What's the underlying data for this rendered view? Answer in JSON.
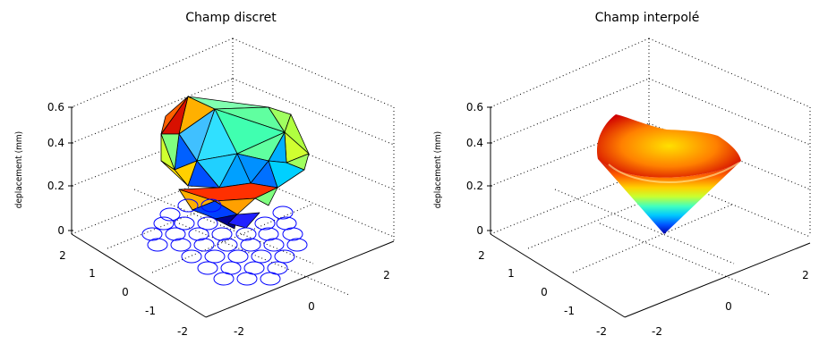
{
  "chart_data": [
    {
      "type": "surface",
      "title": "Champ discret",
      "ylabel": "deplacement (mm)",
      "z_ticks": [
        "0",
        "0.2",
        "0.4",
        "0.6"
      ],
      "y_ticks": [
        "2",
        "1",
        "0",
        "-1",
        "-2"
      ],
      "x_ticks": [
        "-2",
        "0",
        "2"
      ],
      "zlim": [
        0,
        0.6
      ],
      "grid": true,
      "style": "faceted triangulated patches (jet colormap) with circle markers on floor"
    },
    {
      "type": "surface",
      "title": "Champ interpolé",
      "ylabel": "deplacement (mm)",
      "z_ticks": [
        "0",
        "0.2",
        "0.4",
        "0.6"
      ],
      "y_ticks": [
        "2",
        "1",
        "0",
        "-1",
        "-2"
      ],
      "x_ticks": [
        "-2",
        "0",
        "2"
      ],
      "zlim": [
        0,
        0.6
      ],
      "grid": true,
      "style": "smooth interpolated surface (jet colormap)"
    }
  ],
  "colors": {
    "circles": "#0000ff",
    "jet_low": "#0000a0",
    "jet_high": "#c00000"
  }
}
